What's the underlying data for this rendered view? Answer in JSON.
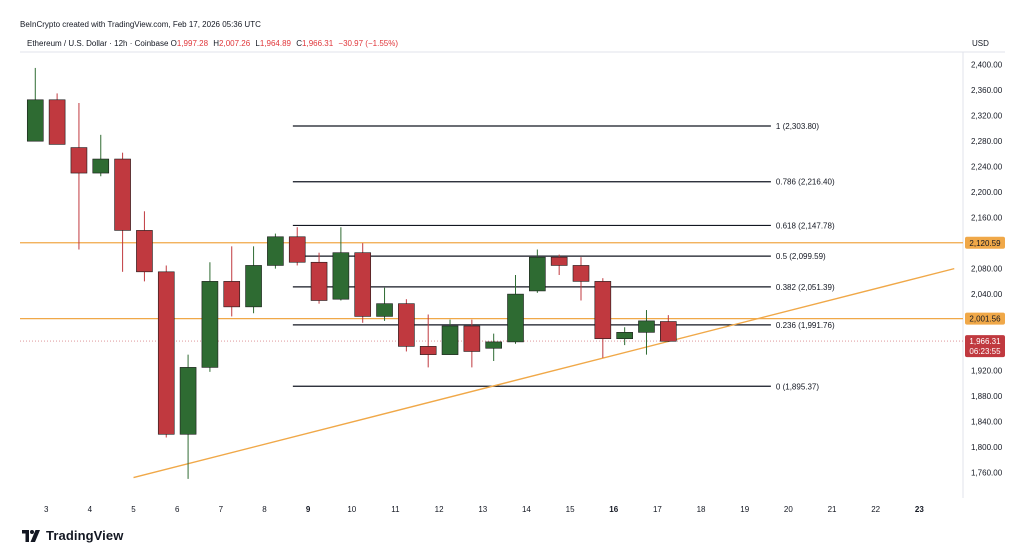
{
  "header": {
    "credit": "BeInCrypto created with TradingView.com, Feb 17, 2026 05:36 UTC"
  },
  "symbol": {
    "name": "Ethereum / U.S. Dollar · 12h · Coinbase",
    "o_label": "O",
    "o_value": "1,997.28",
    "h_label": "H",
    "h_value": "2,007.26",
    "l_label": "L",
    "l_value": "1,964.89",
    "c_label": "C",
    "c_value": "1,966.31",
    "change": "−30.97 (−1.55%)"
  },
  "currency": "USD",
  "footer": {
    "brand": "TradingView"
  },
  "colors": {
    "up": "#2e6b32",
    "down": "#c0393f",
    "fib": "#131722",
    "orange": "#f0a848",
    "price_tag": "#c0393f"
  },
  "chart_data": {
    "type": "candlestick",
    "y_range": [
      1720,
      2420
    ],
    "y_ticks": [
      1760,
      1800,
      1840,
      1880,
      1920,
      1960,
      2000,
      2040,
      2080,
      2120,
      2160,
      2200,
      2240,
      2280,
      2320,
      2360,
      2400
    ],
    "y_tick_labels": [
      "1,760.00",
      "1,800.00",
      "1,840.00",
      "1,880.00",
      "1,920.00",
      "",
      "",
      "2,040.00",
      "2,080.00",
      "",
      "2,160.00",
      "2,200.00",
      "2,240.00",
      "2,280.00",
      "2,320.00",
      "2,360.00",
      "2,400.00"
    ],
    "x_range": [
      2.4,
      24.0
    ],
    "x_ticks": [
      3,
      4,
      5,
      6,
      7,
      8,
      9,
      10,
      11,
      12,
      13,
      14,
      15,
      16,
      17,
      18,
      19,
      20,
      21,
      22,
      23
    ],
    "x_tick_labels": [
      "3",
      "4",
      "5",
      "6",
      "7",
      "8",
      "9",
      "10",
      "11",
      "12",
      "13",
      "14",
      "15",
      "16",
      "17",
      "18",
      "19",
      "20",
      "21",
      "22",
      "23"
    ],
    "x_bold_ticks": [
      "9",
      "16",
      "23"
    ],
    "candles": [
      {
        "t": 2.75,
        "o": 2280,
        "h": 2395,
        "l": 2280,
        "c": 2345
      },
      {
        "t": 3.25,
        "o": 2345,
        "h": 2355,
        "l": 2280,
        "c": 2275
      },
      {
        "t": 3.75,
        "o": 2270,
        "h": 2340,
        "l": 2110,
        "c": 2230
      },
      {
        "t": 4.25,
        "o": 2230,
        "h": 2290,
        "l": 2225,
        "c": 2252
      },
      {
        "t": 4.75,
        "o": 2252,
        "h": 2262,
        "l": 2075,
        "c": 2140
      },
      {
        "t": 5.25,
        "o": 2140,
        "h": 2170,
        "l": 2060,
        "c": 2075
      },
      {
        "t": 5.75,
        "o": 2075,
        "h": 2085,
        "l": 1815,
        "c": 1820
      },
      {
        "t": 6.25,
        "o": 1820,
        "h": 1945,
        "l": 1750,
        "c": 1925
      },
      {
        "t": 6.75,
        "o": 1925,
        "h": 2090,
        "l": 1918,
        "c": 2060
      },
      {
        "t": 7.25,
        "o": 2060,
        "h": 2115,
        "l": 2005,
        "c": 2020
      },
      {
        "t": 7.75,
        "o": 2020,
        "h": 2115,
        "l": 2010,
        "c": 2085
      },
      {
        "t": 8.25,
        "o": 2085,
        "h": 2135,
        "l": 2080,
        "c": 2130
      },
      {
        "t": 8.75,
        "o": 2130,
        "h": 2145,
        "l": 2085,
        "c": 2090
      },
      {
        "t": 9.25,
        "o": 2090,
        "h": 2105,
        "l": 2025,
        "c": 2030
      },
      {
        "t": 9.75,
        "o": 2032,
        "h": 2145,
        "l": 2030,
        "c": 2105
      },
      {
        "t": 10.25,
        "o": 2105,
        "h": 2120,
        "l": 1995,
        "c": 2005
      },
      {
        "t": 10.75,
        "o": 2005,
        "h": 2050,
        "l": 1998,
        "c": 2025
      },
      {
        "t": 11.25,
        "o": 2025,
        "h": 2032,
        "l": 1950,
        "c": 1958
      },
      {
        "t": 11.75,
        "o": 1958,
        "h": 2008,
        "l": 1925,
        "c": 1945
      },
      {
        "t": 12.25,
        "o": 1945,
        "h": 2000,
        "l": 1945,
        "c": 1990
      },
      {
        "t": 12.75,
        "o": 1990,
        "h": 2000,
        "l": 1925,
        "c": 1950
      },
      {
        "t": 13.25,
        "o": 1955,
        "h": 1978,
        "l": 1935,
        "c": 1965
      },
      {
        "t": 13.75,
        "o": 1965,
        "h": 2070,
        "l": 1962,
        "c": 2040
      },
      {
        "t": 14.25,
        "o": 2045,
        "h": 2110,
        "l": 2042,
        "c": 2098
      },
      {
        "t": 14.75,
        "o": 2098,
        "h": 2102,
        "l": 2070,
        "c": 2085
      },
      {
        "t": 15.25,
        "o": 2085,
        "h": 2098,
        "l": 2030,
        "c": 2060
      },
      {
        "t": 15.75,
        "o": 2060,
        "h": 2065,
        "l": 1940,
        "c": 1970
      },
      {
        "t": 16.25,
        "o": 1970,
        "h": 1988,
        "l": 1960,
        "c": 1980
      },
      {
        "t": 16.75,
        "o": 1980,
        "h": 2015,
        "l": 1945,
        "c": 1998
      },
      {
        "t": 17.25,
        "o": 1997,
        "h": 2007,
        "l": 1965,
        "c": 1966
      }
    ],
    "fib_levels": [
      {
        "ratio": "1",
        "value": 2303.8,
        "label": "1 (2,303.80)"
      },
      {
        "ratio": "0.786",
        "value": 2216.4,
        "label": "0.786 (2,216.40)"
      },
      {
        "ratio": "0.618",
        "value": 2147.78,
        "label": "0.618 (2,147.78)"
      },
      {
        "ratio": "0.5",
        "value": 2099.59,
        "label": "0.5 (2,099.59)"
      },
      {
        "ratio": "0.382",
        "value": 2051.39,
        "label": "0.382 (2,051.39)"
      },
      {
        "ratio": "0.236",
        "value": 1991.76,
        "label": "0.236 (1,991.76)"
      },
      {
        "ratio": "0",
        "value": 1895.37,
        "label": "0 (1,895.37)"
      }
    ],
    "fib_x_range": [
      8.65,
      19.6
    ],
    "horizontal_levels": [
      {
        "value": 2120.59,
        "label": "2,120.59"
      },
      {
        "value": 2001.56,
        "label": "2,001.56"
      }
    ],
    "trendline": {
      "t1": 5.0,
      "p1": 1752,
      "t2": 23.8,
      "p2": 2080
    },
    "last_price": {
      "value": 1966.31,
      "label": "1,966.31",
      "countdown": "06:23:55"
    }
  }
}
